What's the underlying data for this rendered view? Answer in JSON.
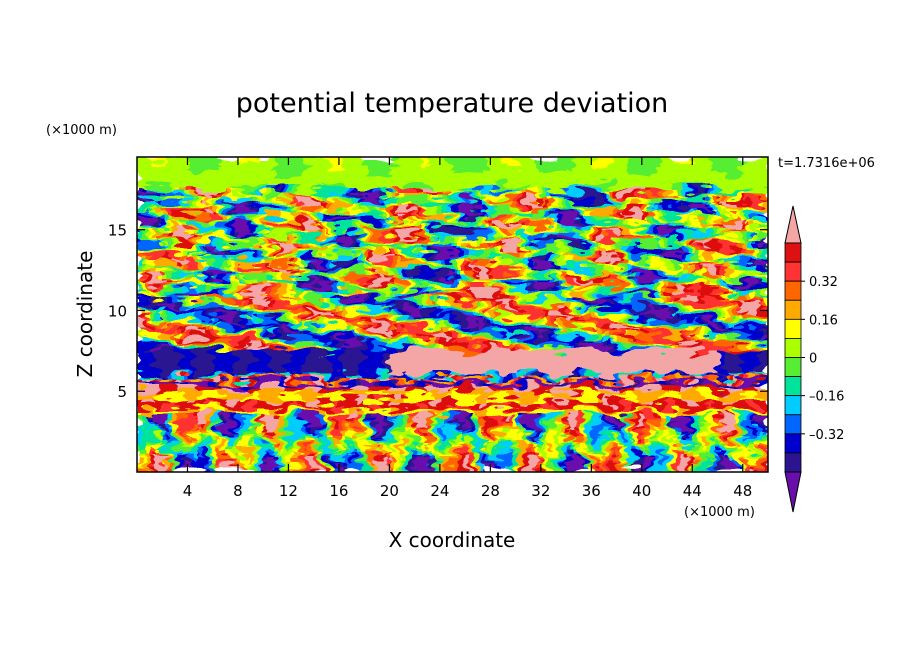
{
  "chart_data": {
    "type": "heatmap",
    "title": "potential temperature deviation",
    "xlabel": "X coordinate",
    "ylabel": "Z coordinate",
    "x_unit": "(×1000 m)",
    "y_unit": "(×1000 m)",
    "time_label": "t=1.7316e+06",
    "xlim": [
      0,
      50
    ],
    "ylim": [
      0,
      19.5
    ],
    "x_ticks": [
      4,
      8,
      12,
      16,
      20,
      24,
      28,
      32,
      36,
      40,
      44,
      48
    ],
    "x_tick_labels": [
      "4",
      "8",
      "12",
      "16",
      "20",
      "24",
      "28",
      "32",
      "36",
      "40",
      "44",
      "48"
    ],
    "y_ticks": [
      5,
      10,
      15
    ],
    "y_tick_labels": [
      "5",
      "10",
      "15"
    ],
    "colorbar": {
      "levels": [
        -0.48,
        -0.4,
        -0.32,
        -0.24,
        -0.16,
        -0.08,
        0,
        0.08,
        0.16,
        0.24,
        0.32,
        0.4,
        0.48
      ],
      "colors": [
        "#6a0dad",
        "#2a1490",
        "#0000cc",
        "#0066ff",
        "#00ccff",
        "#00e39a",
        "#55ee33",
        "#aaff00",
        "#ffff00",
        "#ffaa00",
        "#ff6600",
        "#ff3333",
        "#dd1111",
        "#f4a6a6"
      ],
      "under_color": "#6a0dad",
      "over_color": "#f4a6a6",
      "tick_values": [
        0.32,
        0.16,
        0,
        -0.16,
        -0.32
      ],
      "tick_labels": [
        "0.32",
        "0.16",
        "0",
        "–0.16",
        "–0.32"
      ]
    }
  }
}
